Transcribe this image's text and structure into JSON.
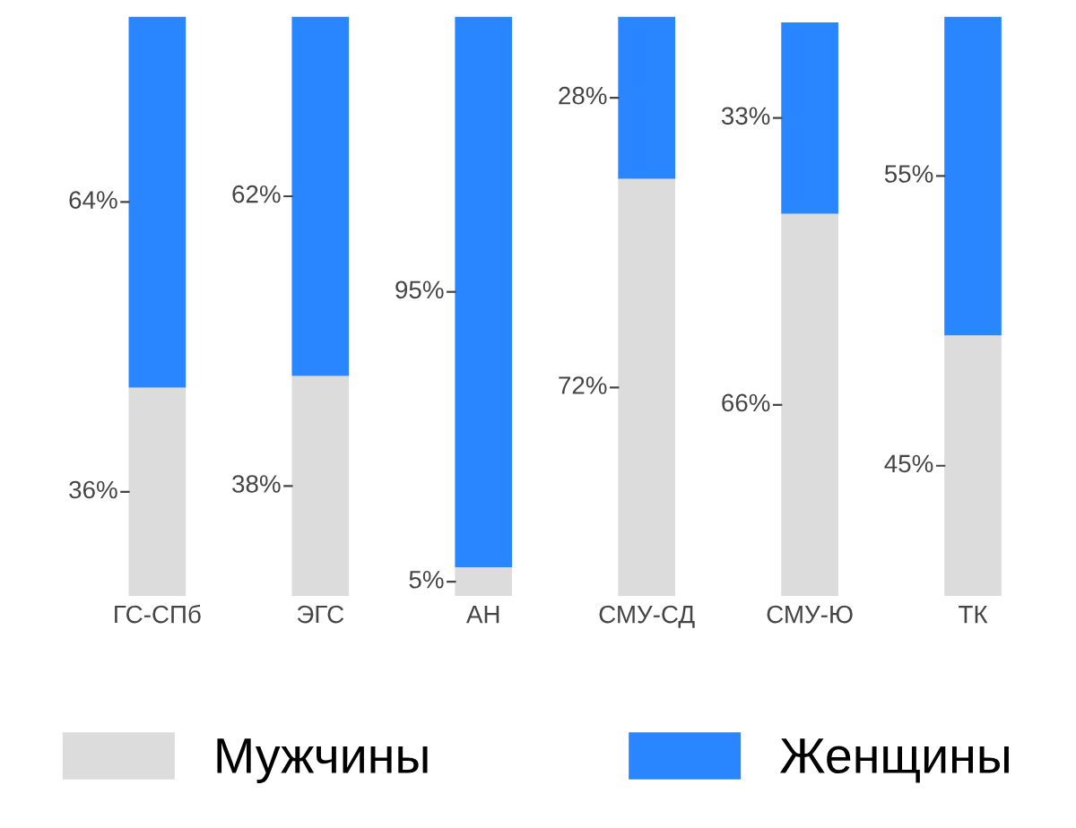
{
  "chart_data": {
    "type": "bar",
    "stacked": true,
    "categories": [
      "ГС-СПб",
      "ЭГС",
      "АН",
      "СМУ-СД",
      "СМУ-Ю",
      "ТК"
    ],
    "series": [
      {
        "name": "Мужчины",
        "color": "#dcdcdc",
        "values": [
          36,
          38,
          5,
          72,
          66,
          45
        ],
        "value_labels": [
          "36%",
          "38%",
          "5%",
          "72%",
          "66%",
          "45%"
        ]
      },
      {
        "name": "Женщины",
        "color": "#2a86ff",
        "values": [
          64,
          62,
          95,
          28,
          33,
          55
        ],
        "value_labels": [
          "64%",
          "62%",
          "95%",
          "28%",
          "33%",
          "55%"
        ]
      }
    ],
    "legend": "bottom"
  }
}
